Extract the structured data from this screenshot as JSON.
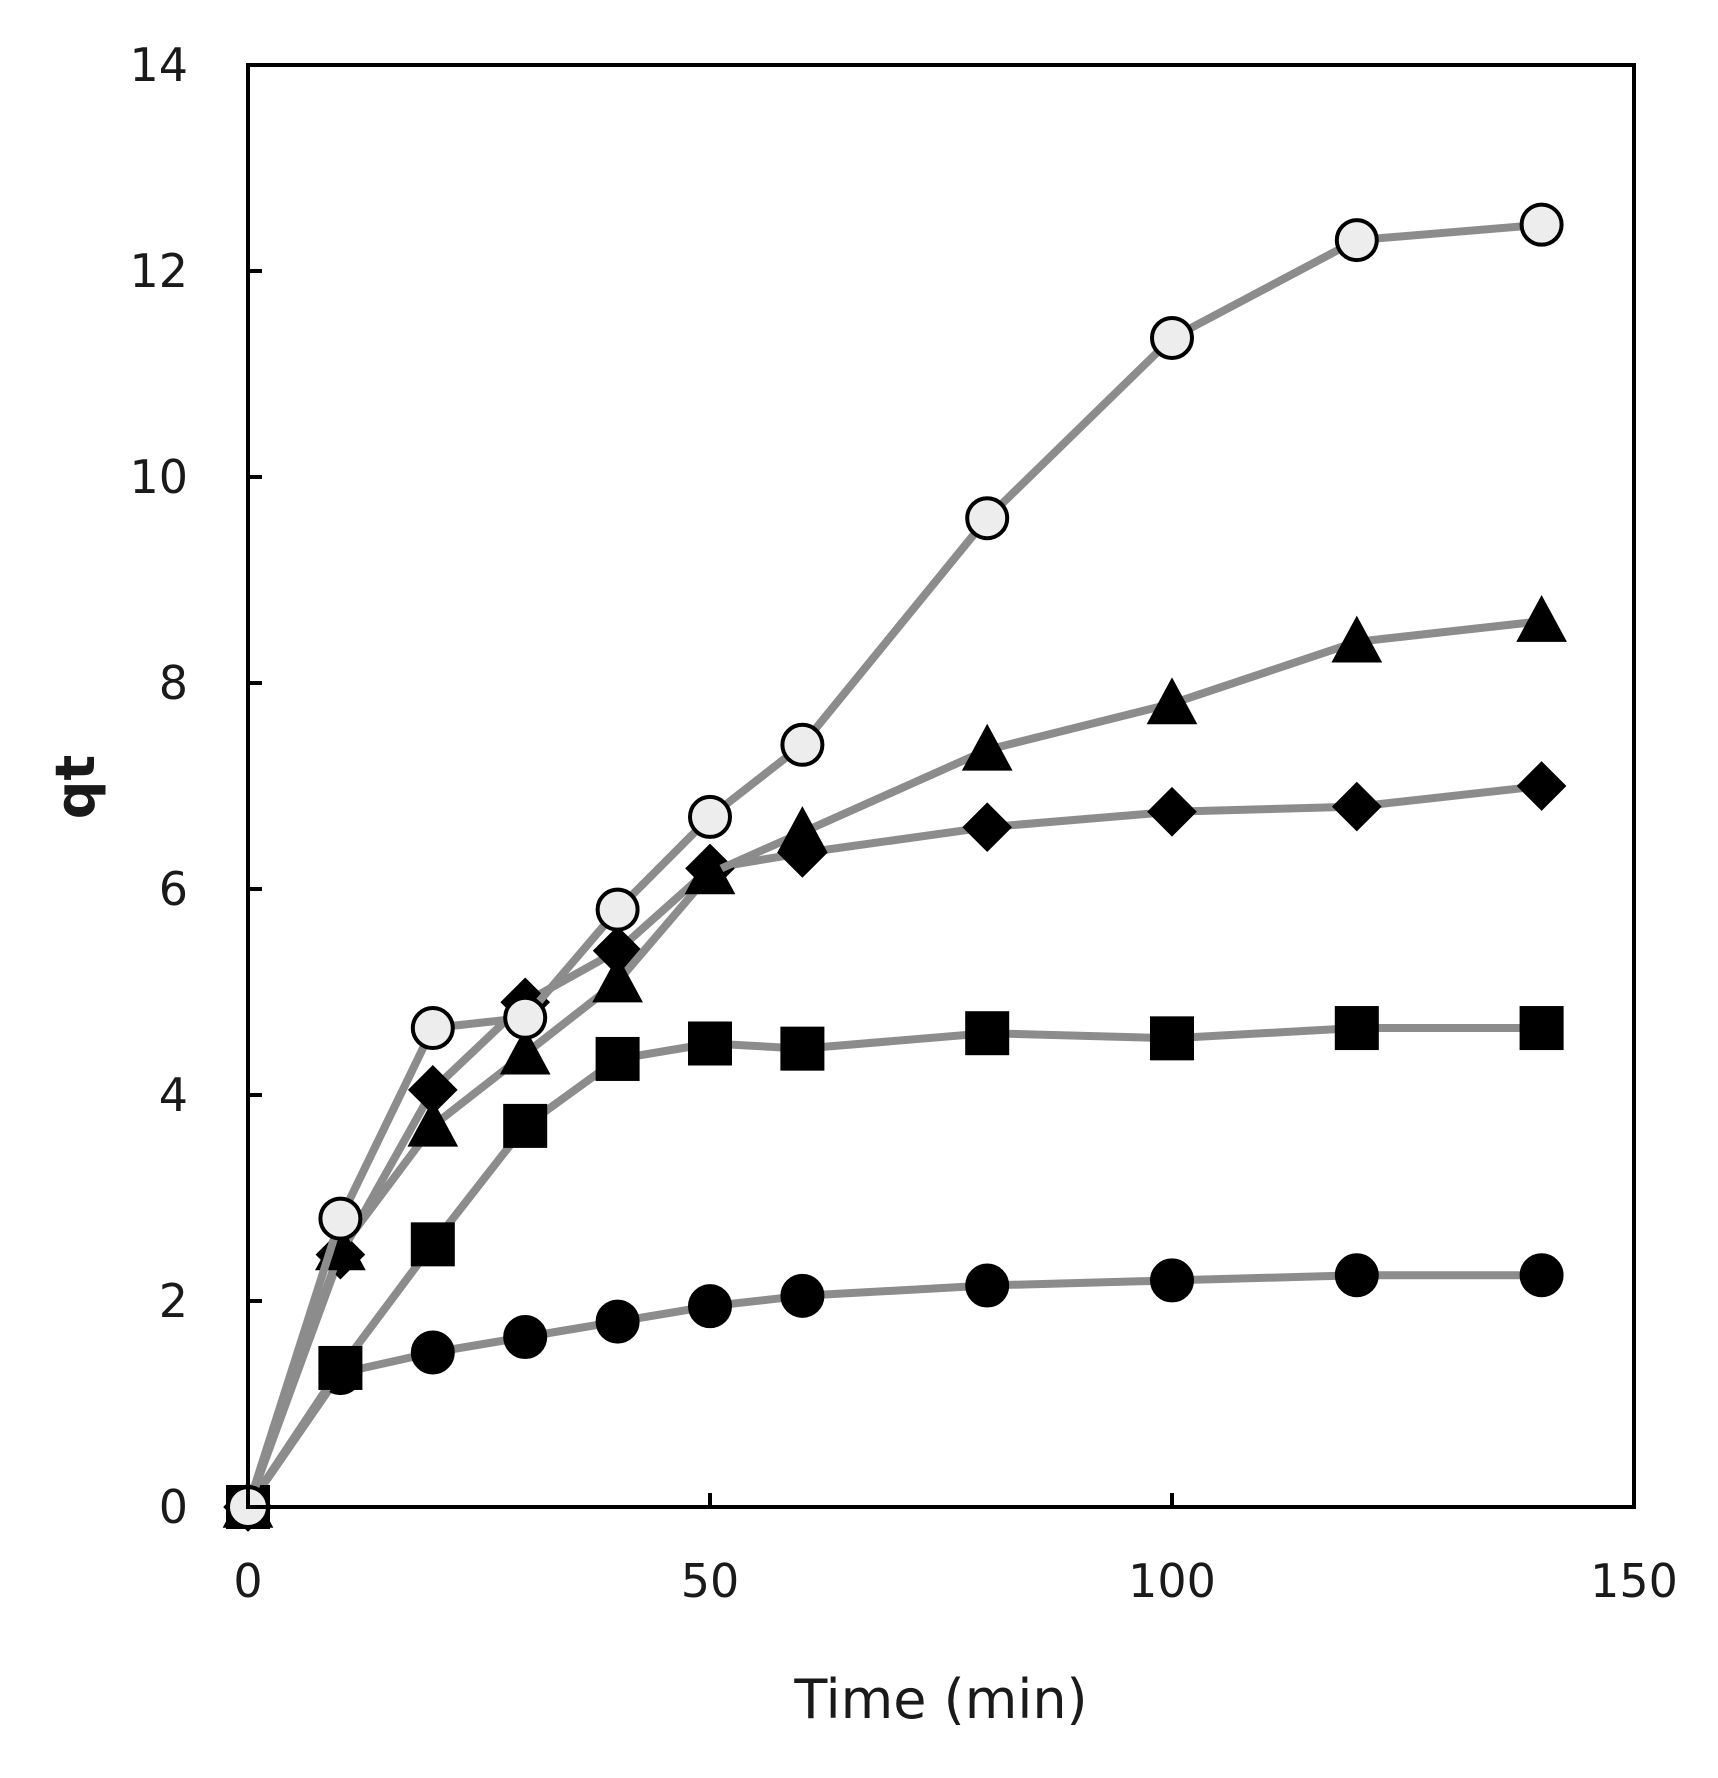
{
  "chart_data": {
    "type": "line",
    "title": "",
    "xlabel": "Time (min)",
    "ylabel": "qt",
    "xlim": [
      0,
      150
    ],
    "ylim": [
      0,
      14
    ],
    "xticks": [
      0,
      50,
      100,
      150
    ],
    "yticks": [
      0,
      2,
      4,
      6,
      8,
      10,
      12,
      14
    ],
    "grid": false,
    "legend": "none",
    "line_color": "#8c8c8c",
    "series": [
      {
        "name": "filled-circle",
        "marker": "circle",
        "marker_fill": "#000000",
        "x": [
          0,
          10,
          20,
          30,
          40,
          50,
          60,
          80,
          100,
          120,
          140
        ],
        "values": [
          0,
          1.3,
          1.5,
          1.65,
          1.8,
          1.95,
          2.05,
          2.15,
          2.2,
          2.25,
          2.25
        ]
      },
      {
        "name": "filled-square",
        "marker": "square",
        "marker_fill": "#000000",
        "x": [
          0,
          10,
          20,
          30,
          40,
          50,
          60,
          80,
          100,
          120,
          140
        ],
        "values": [
          0,
          1.35,
          2.55,
          3.7,
          4.35,
          4.5,
          4.45,
          4.6,
          4.55,
          4.65,
          4.65
        ]
      },
      {
        "name": "filled-diamond",
        "marker": "diamond",
        "marker_fill": "#000000",
        "x": [
          0,
          10,
          20,
          30,
          40,
          50,
          60,
          80,
          100,
          120,
          140
        ],
        "values": [
          0,
          2.45,
          4.05,
          4.9,
          5.4,
          6.2,
          6.35,
          6.6,
          6.75,
          6.8,
          7.0
        ]
      },
      {
        "name": "filled-triangle",
        "marker": "triangle",
        "marker_fill": "#000000",
        "x": [
          0,
          10,
          20,
          30,
          40,
          50,
          60,
          80,
          100,
          120,
          140
        ],
        "values": [
          0,
          2.5,
          3.7,
          4.4,
          5.1,
          6.15,
          6.55,
          7.35,
          7.8,
          8.4,
          8.6
        ]
      },
      {
        "name": "open-circle",
        "marker": "circle",
        "marker_fill": "#ededed",
        "x": [
          0,
          10,
          20,
          30,
          40,
          50,
          60,
          80,
          100,
          120,
          140
        ],
        "values": [
          0,
          2.8,
          4.65,
          4.75,
          5.8,
          6.7,
          7.4,
          9.6,
          11.35,
          12.3,
          12.45
        ]
      }
    ]
  }
}
